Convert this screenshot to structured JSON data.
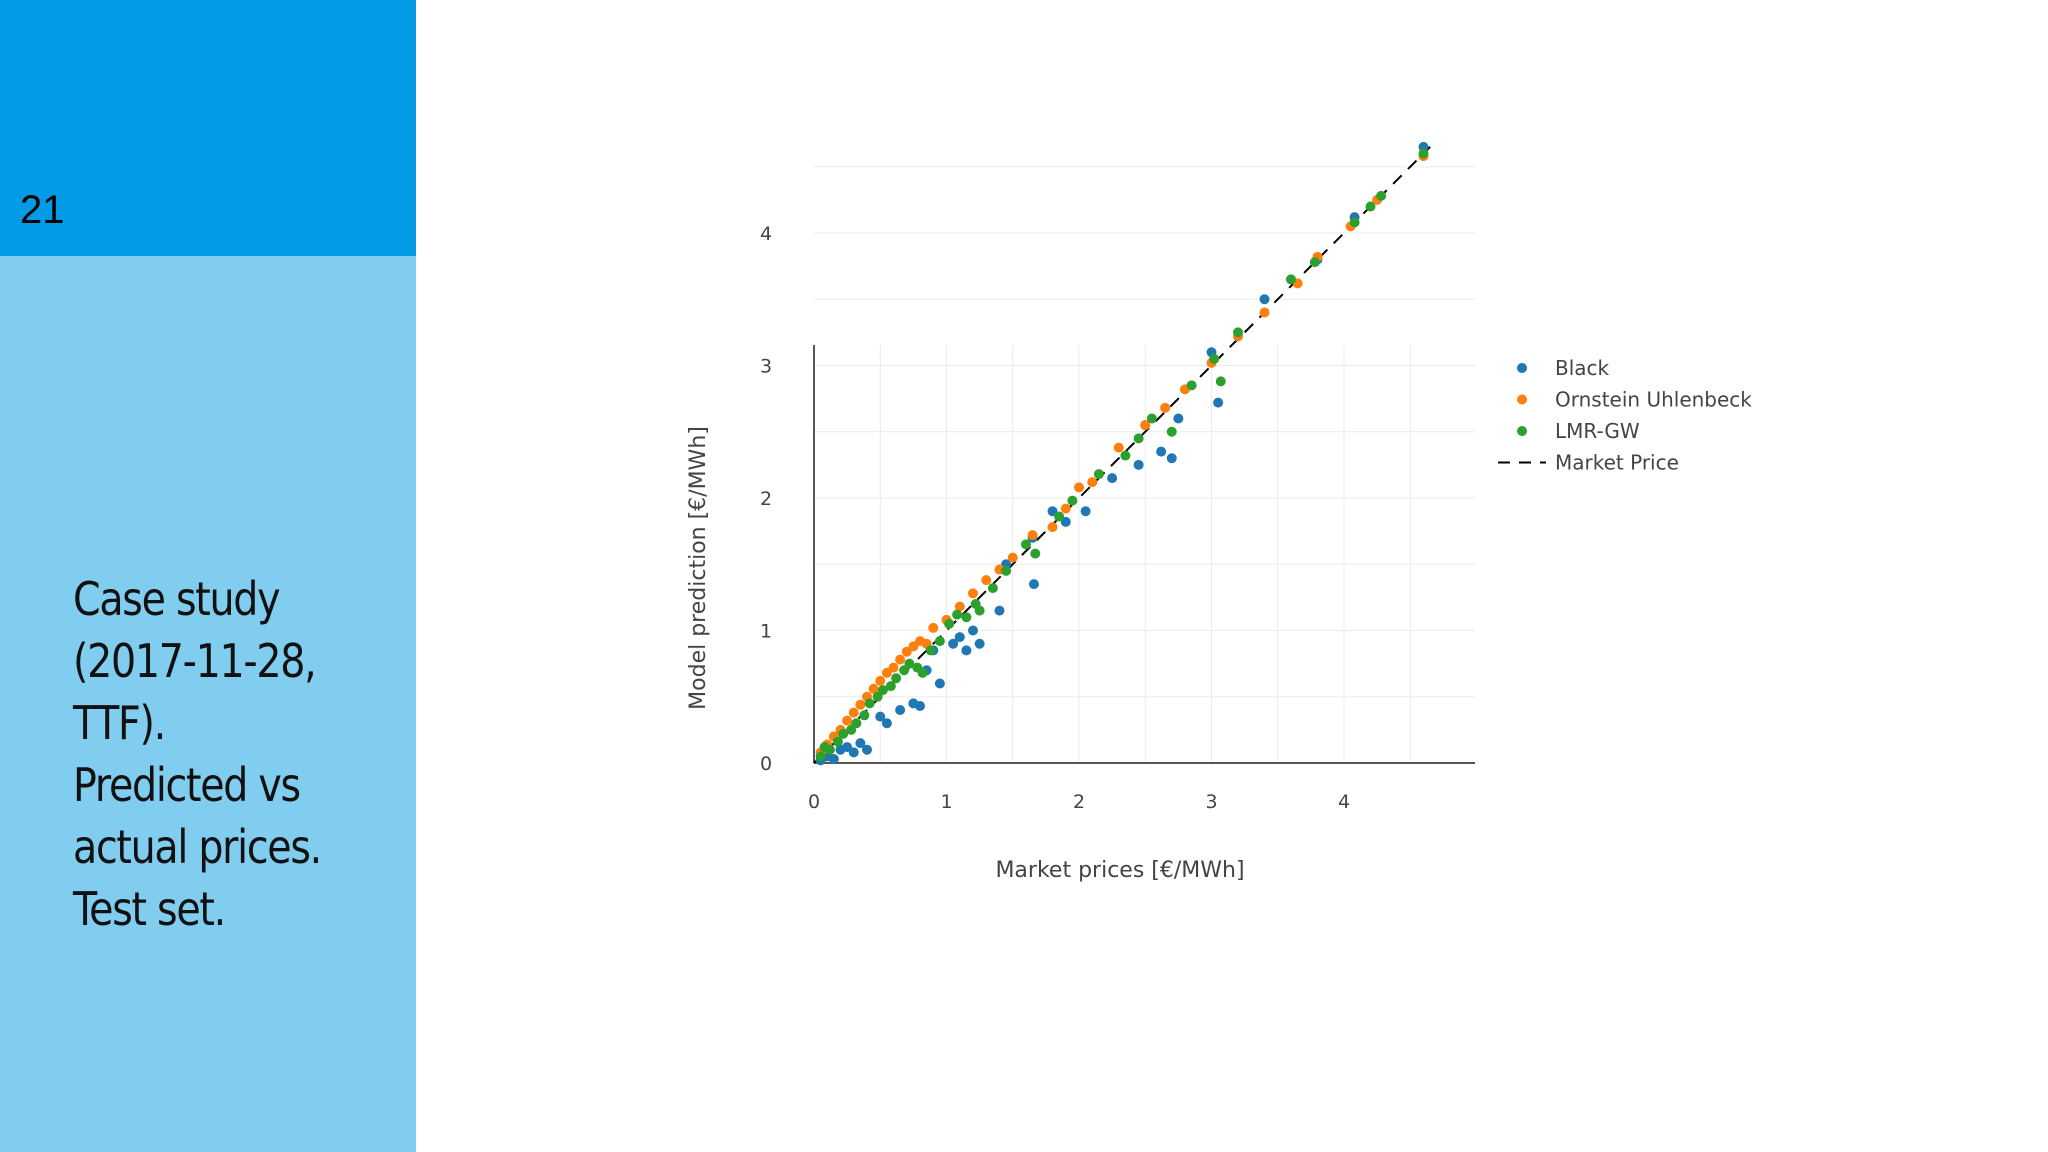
{
  "slide": {
    "number": "21",
    "caption_lines": [
      "Case study",
      "(2017-11-28,",
      "TTF).",
      "Predicted vs",
      "actual prices.",
      "Test set."
    ]
  },
  "colors": {
    "sidebar_top": "#039be5",
    "sidebar_bottom": "#81cdf0",
    "black_series": "#1f77b4",
    "ou_series": "#ff7f0e",
    "lmr_series": "#2ca02c"
  },
  "chart_data": {
    "type": "scatter",
    "title": "",
    "xlabel": "Market prices [€/MWh]",
    "ylabel": "Model prediction [€/MWh]",
    "xlim": [
      0,
      4.95
    ],
    "ylim": [
      0,
      4.95
    ],
    "xticks": [
      0,
      1,
      2,
      3,
      4
    ],
    "yticks": [
      0,
      1,
      2,
      3,
      4
    ],
    "grid": true,
    "legend_position": "top-right",
    "series": [
      {
        "name": "Black",
        "marker": "circle",
        "color": "#1f77b4",
        "points": [
          [
            0.05,
            0.02
          ],
          [
            0.1,
            0.05
          ],
          [
            0.15,
            0.03
          ],
          [
            0.2,
            0.1
          ],
          [
            0.25,
            0.12
          ],
          [
            0.3,
            0.08
          ],
          [
            0.35,
            0.15
          ],
          [
            0.4,
            0.1
          ],
          [
            0.5,
            0.35
          ],
          [
            0.55,
            0.3
          ],
          [
            0.65,
            0.4
          ],
          [
            0.75,
            0.45
          ],
          [
            0.8,
            0.43
          ],
          [
            0.85,
            0.7
          ],
          [
            0.9,
            0.85
          ],
          [
            0.95,
            0.6
          ],
          [
            1.05,
            0.9
          ],
          [
            1.1,
            0.95
          ],
          [
            1.15,
            0.85
          ],
          [
            1.2,
            1.0
          ],
          [
            1.25,
            0.9
          ],
          [
            1.4,
            1.15
          ],
          [
            1.45,
            1.5
          ],
          [
            1.65,
            1.7
          ],
          [
            1.66,
            1.35
          ],
          [
            1.8,
            1.9
          ],
          [
            1.9,
            1.82
          ],
          [
            2.05,
            1.9
          ],
          [
            2.25,
            2.15
          ],
          [
            2.45,
            2.25
          ],
          [
            2.5,
            2.55
          ],
          [
            2.62,
            2.35
          ],
          [
            2.7,
            2.3
          ],
          [
            2.75,
            2.6
          ],
          [
            3.0,
            3.1
          ],
          [
            3.05,
            2.72
          ],
          [
            3.4,
            3.5
          ],
          [
            3.8,
            3.8
          ],
          [
            4.08,
            4.12
          ],
          [
            4.6,
            4.65
          ]
        ]
      },
      {
        "name": "Ornstein Uhlenbeck",
        "marker": "circle",
        "color": "#ff7f0e",
        "points": [
          [
            0.05,
            0.08
          ],
          [
            0.1,
            0.14
          ],
          [
            0.15,
            0.2
          ],
          [
            0.2,
            0.25
          ],
          [
            0.25,
            0.32
          ],
          [
            0.3,
            0.38
          ],
          [
            0.35,
            0.44
          ],
          [
            0.4,
            0.5
          ],
          [
            0.45,
            0.56
          ],
          [
            0.5,
            0.62
          ],
          [
            0.55,
            0.68
          ],
          [
            0.6,
            0.72
          ],
          [
            0.65,
            0.78
          ],
          [
            0.7,
            0.84
          ],
          [
            0.75,
            0.88
          ],
          [
            0.8,
            0.92
          ],
          [
            0.85,
            0.9
          ],
          [
            0.9,
            1.02
          ],
          [
            1.0,
            1.08
          ],
          [
            1.1,
            1.18
          ],
          [
            1.2,
            1.28
          ],
          [
            1.3,
            1.38
          ],
          [
            1.4,
            1.46
          ],
          [
            1.5,
            1.55
          ],
          [
            1.65,
            1.72
          ],
          [
            1.8,
            1.78
          ],
          [
            1.9,
            1.92
          ],
          [
            2.0,
            2.08
          ],
          [
            2.1,
            2.12
          ],
          [
            2.3,
            2.38
          ],
          [
            2.5,
            2.55
          ],
          [
            2.65,
            2.68
          ],
          [
            2.8,
            2.82
          ],
          [
            3.0,
            3.02
          ],
          [
            3.2,
            3.22
          ],
          [
            3.4,
            3.4
          ],
          [
            3.65,
            3.62
          ],
          [
            3.8,
            3.82
          ],
          [
            4.05,
            4.05
          ],
          [
            4.25,
            4.25
          ],
          [
            4.6,
            4.58
          ]
        ]
      },
      {
        "name": "LMR-GW",
        "marker": "circle",
        "color": "#2ca02c",
        "points": [
          [
            0.05,
            0.05
          ],
          [
            0.08,
            0.12
          ],
          [
            0.12,
            0.1
          ],
          [
            0.18,
            0.16
          ],
          [
            0.22,
            0.22
          ],
          [
            0.28,
            0.25
          ],
          [
            0.32,
            0.3
          ],
          [
            0.38,
            0.36
          ],
          [
            0.42,
            0.45
          ],
          [
            0.48,
            0.5
          ],
          [
            0.52,
            0.55
          ],
          [
            0.58,
            0.58
          ],
          [
            0.62,
            0.64
          ],
          [
            0.68,
            0.7
          ],
          [
            0.72,
            0.75
          ],
          [
            0.78,
            0.72
          ],
          [
            0.82,
            0.68
          ],
          [
            0.88,
            0.85
          ],
          [
            0.95,
            0.92
          ],
          [
            1.02,
            1.05
          ],
          [
            1.08,
            1.12
          ],
          [
            1.15,
            1.1
          ],
          [
            1.22,
            1.2
          ],
          [
            1.25,
            1.15
          ],
          [
            1.35,
            1.32
          ],
          [
            1.45,
            1.45
          ],
          [
            1.6,
            1.65
          ],
          [
            1.67,
            1.58
          ],
          [
            1.85,
            1.86
          ],
          [
            1.95,
            1.98
          ],
          [
            2.15,
            2.18
          ],
          [
            2.35,
            2.32
          ],
          [
            2.45,
            2.45
          ],
          [
            2.55,
            2.6
          ],
          [
            2.7,
            2.5
          ],
          [
            2.85,
            2.85
          ],
          [
            3.02,
            3.05
          ],
          [
            3.07,
            2.88
          ],
          [
            3.2,
            3.25
          ],
          [
            3.6,
            3.65
          ],
          [
            3.78,
            3.78
          ],
          [
            4.08,
            4.08
          ],
          [
            4.2,
            4.2
          ],
          [
            4.28,
            4.28
          ],
          [
            4.6,
            4.6
          ]
        ]
      },
      {
        "name": "Market Price",
        "marker": "dashed-line",
        "color": "#000000",
        "points": [
          [
            0,
            0
          ],
          [
            4.65,
            4.65
          ]
        ]
      }
    ]
  }
}
